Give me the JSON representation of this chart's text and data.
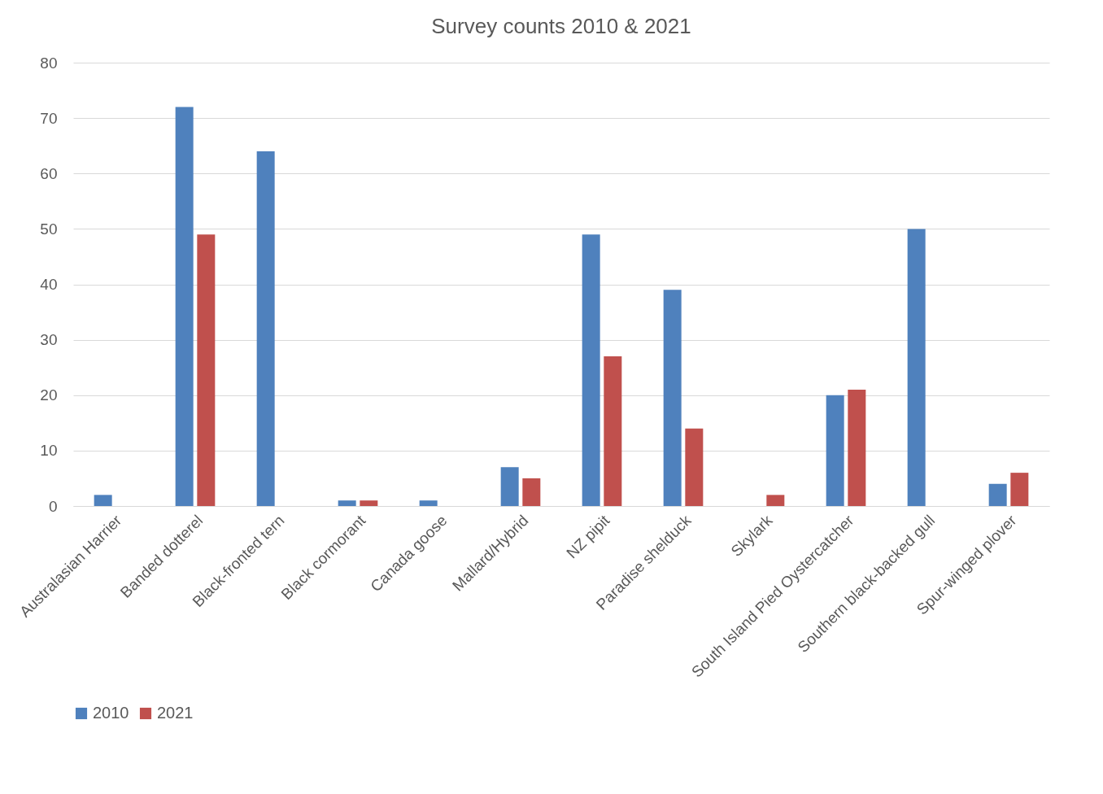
{
  "chart_data": {
    "type": "bar",
    "title": "Survey counts 2010 & 2021",
    "categories": [
      "Australasian Harrier",
      "Banded dotterel",
      "Black-fronted tern",
      "Black cormorant",
      "Canada goose",
      "Mallard/Hybrid",
      "NZ pipit",
      "Paradise shelduck",
      "Skylark",
      "South Island Pied Oystercatcher",
      "Southern black-backed gull",
      "Spur-winged plover"
    ],
    "series": [
      {
        "name": "2010",
        "color": "#4f81bd",
        "values": [
          2,
          72,
          64,
          1,
          1,
          7,
          49,
          39,
          null,
          20,
          50,
          4
        ]
      },
      {
        "name": "2021",
        "color": "#c0504d",
        "values": [
          null,
          49,
          null,
          1,
          null,
          5,
          27,
          14,
          2,
          21,
          null,
          6
        ]
      }
    ],
    "ylim": [
      0,
      80
    ],
    "yticks": [
      0,
      10,
      20,
      30,
      40,
      50,
      60,
      70,
      80
    ],
    "grid": "y",
    "legend": "bottom"
  }
}
